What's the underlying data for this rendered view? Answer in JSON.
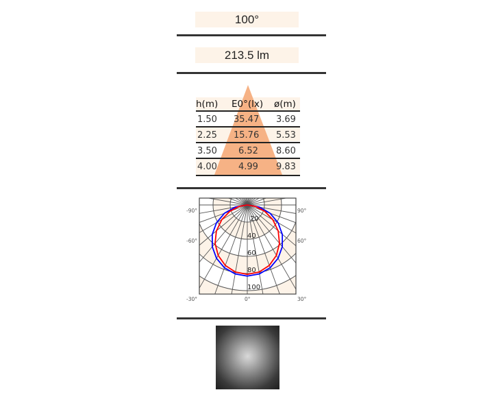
{
  "beam_angle": "100°",
  "luminous_flux": "213.5 lm",
  "illuminance_table": {
    "headers": [
      "h(m)",
      "E0°(lx)",
      "ø(m)"
    ],
    "rows": [
      [
        "1.50",
        "35.47",
        "3.69"
      ],
      [
        "2.25",
        "15.76",
        "5.53"
      ],
      [
        "3.50",
        "6.52",
        "8.60"
      ],
      [
        "4.00",
        "4.99",
        "9.83"
      ]
    ],
    "cone_color": "#f6b285",
    "band_color": "#fdf3e8"
  },
  "polar_chart": {
    "radial_labels": [
      "20",
      "40",
      "60",
      "80",
      "100"
    ],
    "angle_labels": {
      "left": [
        "-90°",
        "-60°",
        "-30°"
      ],
      "bottom": "0°",
      "right": [
        "90°",
        "60°",
        "30°"
      ]
    },
    "angles_deg": [
      0,
      10,
      20,
      30,
      40,
      50,
      60,
      70,
      80,
      90
    ],
    "curves": [
      {
        "color": "#0000ff",
        "values": [
          83,
          81.7,
          78,
          71.9,
          63.6,
          53.4,
          41.5,
          28.4,
          14.4,
          0
        ]
      },
      {
        "color": "#ff0000",
        "values": [
          81,
          79.5,
          75.1,
          68,
          58.5,
          47.1,
          34.4,
          21.8,
          9.6,
          0
        ]
      }
    ]
  }
}
